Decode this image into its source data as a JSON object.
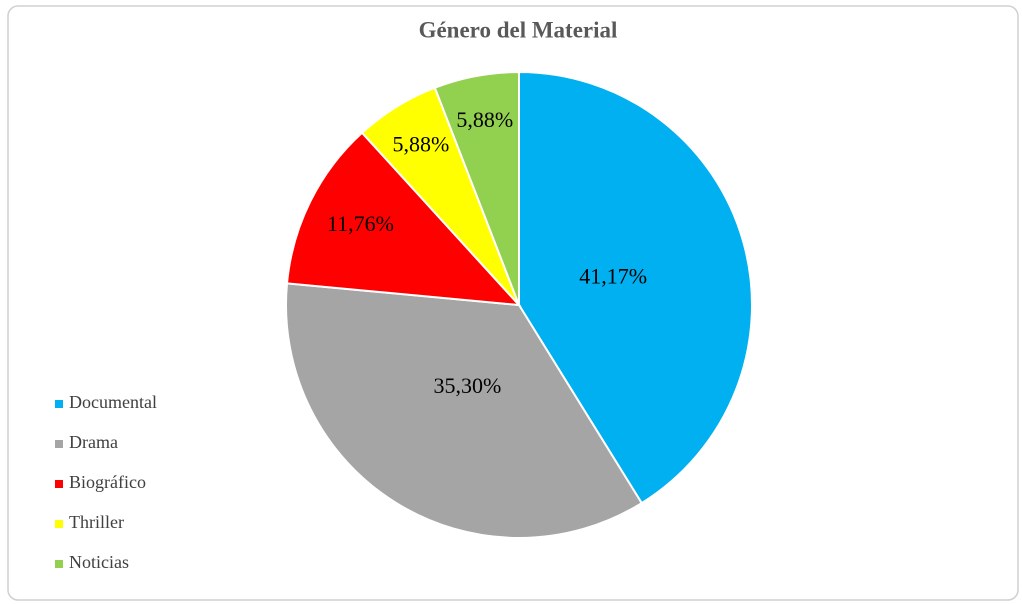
{
  "chart_data": {
    "type": "pie",
    "title": "Género del Material",
    "categories": [
      "Documental",
      "Drama",
      "Biográfico",
      "Thriller",
      "Noticias"
    ],
    "values": [
      41.17,
      35.3,
      11.76,
      5.88,
      5.88
    ],
    "value_labels": [
      "41,17%",
      "35,30%",
      "11,76%",
      "5,88%",
      "5,88%"
    ],
    "colors": [
      "#00b0f0",
      "#a5a5a5",
      "#ff0000",
      "#ffff00",
      "#92d050"
    ],
    "legend": "left"
  }
}
